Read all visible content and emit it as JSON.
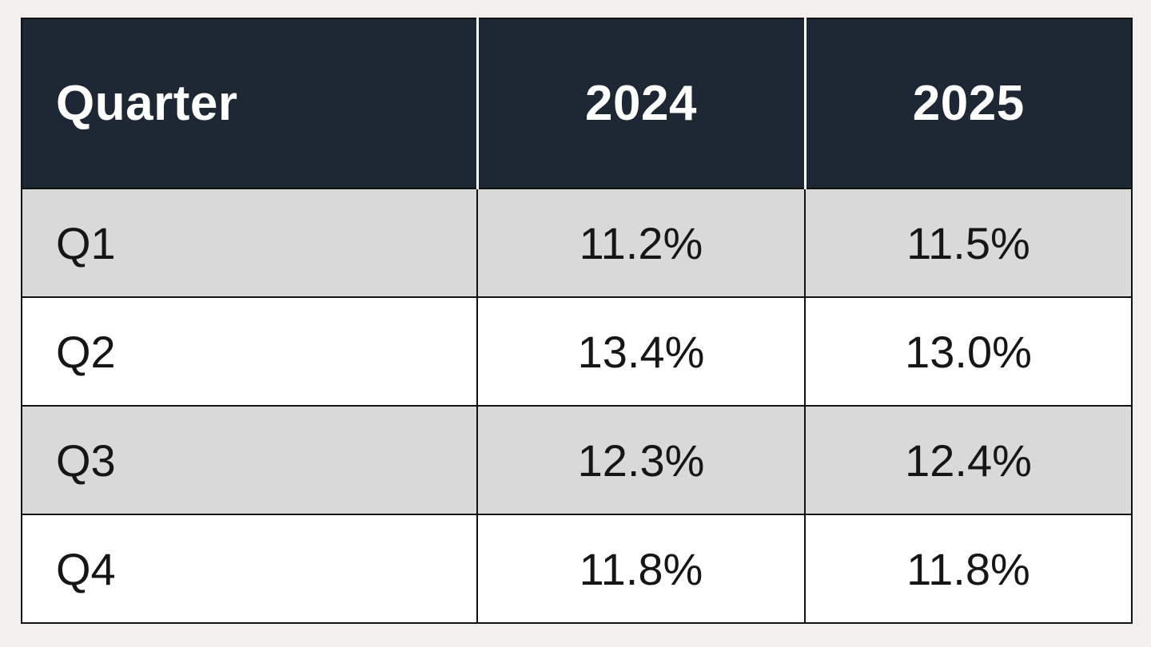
{
  "page": {
    "background": "#f1f0ee"
  },
  "colors": {
    "header_bg": "#1e2734",
    "header_text": "#ffffff",
    "header_divider": "#ffffff",
    "row_alt_bg": "#d9d9d9",
    "row_bg": "#ffffff",
    "body_text": "#161616",
    "grid_line": "#121212"
  },
  "table": {
    "header": {
      "quarter": "Quarter",
      "col_2024": "2024",
      "col_2025": "2025"
    },
    "rows": [
      {
        "label": "Q1",
        "v2024": "11.2%",
        "v2025": "11.5%"
      },
      {
        "label": "Q2",
        "v2024": "13.4%",
        "v2025": "13.0%"
      },
      {
        "label": "Q3",
        "v2024": "12.3%",
        "v2025": "12.4%"
      },
      {
        "label": "Q4",
        "v2024": "11.8%",
        "v2025": "11.8%"
      }
    ]
  },
  "chart_data": {
    "type": "table",
    "title": "",
    "columns": [
      "Quarter",
      "2024",
      "2025"
    ],
    "categories": [
      "Q1",
      "Q2",
      "Q3",
      "Q4"
    ],
    "series": [
      {
        "name": "2024",
        "values": [
          11.2,
          13.4,
          12.3,
          11.8
        ]
      },
      {
        "name": "2025",
        "values": [
          11.5,
          13.0,
          12.4,
          11.8
        ]
      }
    ],
    "unit": "%",
    "rows": [
      [
        "Q1",
        "11.2%",
        "11.5%"
      ],
      [
        "Q2",
        "13.4%",
        "13.0%"
      ],
      [
        "Q3",
        "12.3%",
        "12.4%"
      ],
      [
        "Q4",
        "11.8%",
        "11.8%"
      ]
    ],
    "layout": {
      "header_style": "dark-navy, white bold text, white column dividers",
      "body_style": "alternating gray/white rows, black grid lines",
      "value_alignment": "center",
      "label_alignment": "left"
    }
  }
}
